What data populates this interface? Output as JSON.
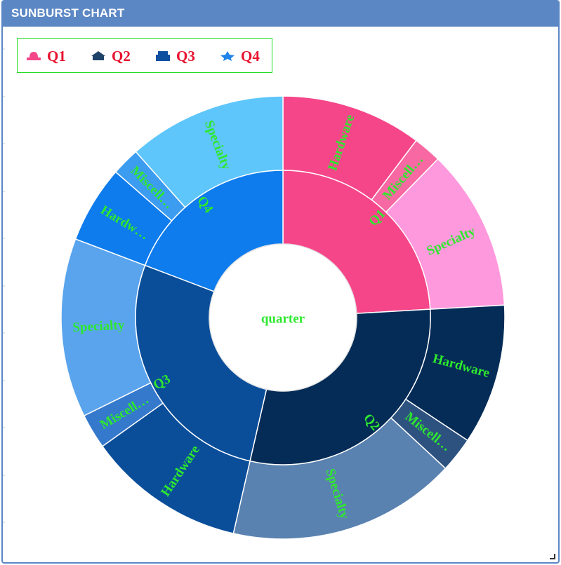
{
  "window": {
    "title": "SUNBURST CHART"
  },
  "colors": {
    "header": "#5b87c5",
    "legend_text": "#e8122e",
    "label_text": "#2ee82e",
    "legend_border": "#22dd22"
  },
  "legend": {
    "items": [
      {
        "label": "Q1",
        "color": "#f5468a",
        "icon": "hat-icon"
      },
      {
        "label": "Q2",
        "color": "#1e4268",
        "icon": "crown-icon"
      },
      {
        "label": "Q3",
        "color": "#0e4fa0",
        "icon": "box-icon"
      },
      {
        "label": "Q4",
        "color": "#1f84ea",
        "icon": "star-icon"
      }
    ]
  },
  "chart_data": {
    "type": "sunburst",
    "center_label": "quarter",
    "legend_position": "top-left",
    "nodes": [
      {
        "name": "Q1",
        "value": 94,
        "color": "#f5468a",
        "children": [
          {
            "name": "Hardware",
            "display": "Hardware",
            "value": 40,
            "color": "#f5468a"
          },
          {
            "name": "Miscellaneous",
            "display": "Miscell…",
            "value": 8,
            "color": "#f868a2"
          },
          {
            "name": "Specialty",
            "display": "Specialty",
            "value": 46,
            "color": "#ff99dd"
          }
        ]
      },
      {
        "name": "Q2",
        "value": 115,
        "color": "#042c57",
        "children": [
          {
            "name": "Hardware",
            "display": "Hardware",
            "value": 40,
            "color": "#042c57"
          },
          {
            "name": "Miscellaneous",
            "display": "Miscell…",
            "value": 10,
            "color": "#2d5280"
          },
          {
            "name": "Specialty",
            "display": "Specialty",
            "value": 65,
            "color": "#5a82b0"
          }
        ]
      },
      {
        "name": "Q3",
        "value": 106,
        "color": "#0a4e9a",
        "children": [
          {
            "name": "Hardware",
            "display": "Hardware",
            "value": 45,
            "color": "#0a4e9a"
          },
          {
            "name": "Miscellaneous",
            "display": "Miscell…",
            "value": 10,
            "color": "#3579cc"
          },
          {
            "name": "Specialty",
            "display": "Specialty",
            "value": 51,
            "color": "#5aa4ee"
          }
        ]
      },
      {
        "name": "Q4",
        "value": 75,
        "color": "#0e7cec",
        "children": [
          {
            "name": "Hardware",
            "display": "Hardw…",
            "value": 22,
            "color": "#0e7cec"
          },
          {
            "name": "Miscellaneous",
            "display": "Miscell…",
            "value": 8,
            "color": "#3b9cf0"
          },
          {
            "name": "Specialty",
            "display": "Specialty",
            "value": 45,
            "color": "#5ec6fa"
          }
        ]
      }
    ]
  }
}
